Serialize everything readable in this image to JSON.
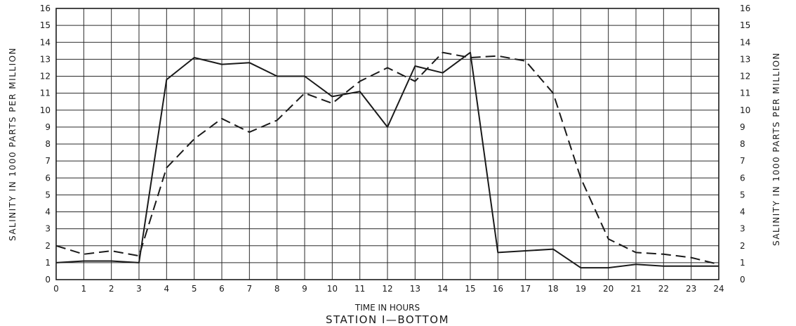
{
  "chart_data": {
    "type": "line",
    "title": "STATION I—BOTTOM",
    "xlabel": "TIME IN HOURS",
    "ylabel": "SALINITY IN 1000 PARTS PER MILLION",
    "ylabel_right": "SALINITY IN 1000 PARTS PER MILLION",
    "xlim": [
      0,
      24
    ],
    "ylim": [
      0,
      16
    ],
    "grid": true,
    "x": [
      0,
      1,
      2,
      3,
      4,
      5,
      6,
      7,
      8,
      9,
      10,
      11,
      12,
      13,
      14,
      15,
      16,
      17,
      18,
      19,
      20,
      21,
      22,
      23,
      24
    ],
    "series": [
      {
        "style": "solid",
        "values": [
          1.0,
          1.1,
          1.1,
          1.0,
          11.8,
          13.1,
          12.7,
          12.8,
          12.0,
          12.0,
          10.8,
          11.1,
          9.0,
          12.6,
          12.2,
          13.4,
          1.6,
          1.7,
          1.8,
          0.7,
          0.7,
          0.9,
          0.8,
          0.8,
          0.8
        ]
      },
      {
        "style": "dashed",
        "values": [
          2.0,
          1.5,
          1.7,
          1.4,
          6.6,
          8.3,
          9.5,
          8.7,
          9.4,
          11.0,
          10.4,
          11.7,
          12.5,
          11.7,
          13.4,
          13.1,
          13.2,
          12.9,
          11.0,
          6.0,
          2.4,
          1.6,
          1.5,
          1.3,
          0.9
        ]
      }
    ],
    "yticks": [
      "0",
      "1",
      "2",
      "3",
      "4",
      "5",
      "6",
      "7",
      "8",
      "9",
      "10",
      "11",
      "12",
      "13",
      "14",
      "15",
      "16"
    ],
    "xticks": [
      "0",
      "1",
      "2",
      "3",
      "4",
      "5",
      "6",
      "7",
      "8",
      "9",
      "10",
      "11",
      "12",
      "13",
      "14",
      "15",
      "16",
      "17",
      "18",
      "19",
      "20",
      "21",
      "22",
      "23",
      "24"
    ]
  }
}
